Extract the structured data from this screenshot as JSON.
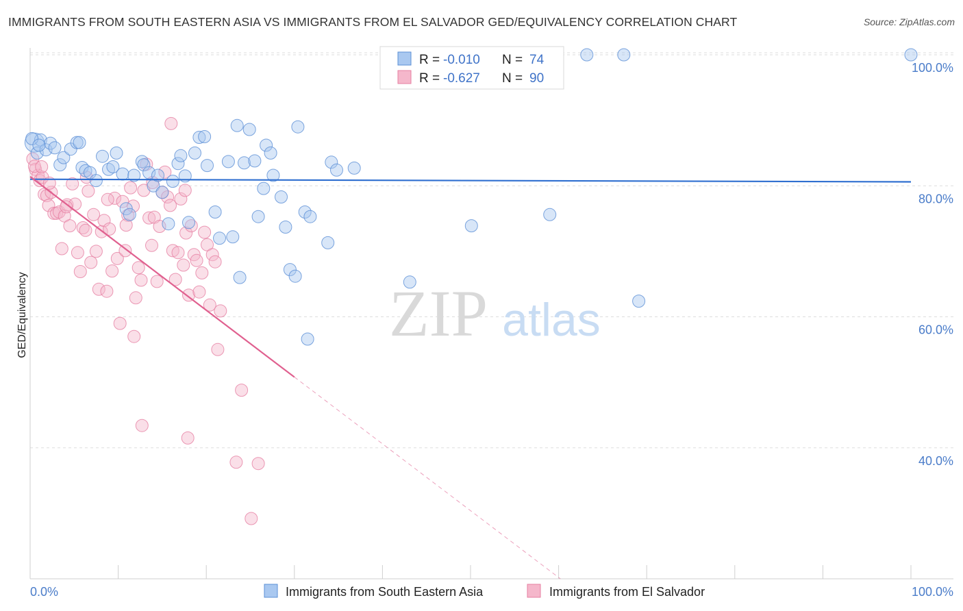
{
  "title": "IMMIGRANTS FROM SOUTH EASTERN ASIA VS IMMIGRANTS FROM EL SALVADOR GED/EQUIVALENCY CORRELATION CHART",
  "source": "Source: ZipAtlas.com",
  "watermark": {
    "zip": "ZIP",
    "atlas": "atlas"
  },
  "colors": {
    "blue_fill": "#a9c8f0",
    "blue_stroke": "#5b8fd6",
    "blue_line": "#2f6fd0",
    "pink_fill": "#f5b7cb",
    "pink_stroke": "#e67fa2",
    "pink_line": "#e0608f",
    "tick_text": "#4a7cc9",
    "grid": "#dddddd"
  },
  "chart_data": {
    "type": "scatter",
    "title": "IMMIGRANTS FROM SOUTH EASTERN ASIA VS IMMIGRANTS FROM EL SALVADOR GED/EQUIVALENCY CORRELATION CHART",
    "xlabel": "",
    "ylabel": "GED/Equivalency",
    "xlim": [
      0,
      100
    ],
    "ylim": [
      20,
      102
    ],
    "x_tick_labels": [
      "0.0%",
      "100.0%"
    ],
    "y_ticks": [
      40,
      60,
      80,
      100
    ],
    "y_tick_labels": [
      "40.0%",
      "60.0%",
      "80.0%",
      "100.0%"
    ],
    "grid": true,
    "legend_position": "top-center",
    "legend": [
      {
        "r_label": "R =",
        "r_value": "-0.010",
        "n_label": "N =",
        "n_value": "74"
      },
      {
        "r_label": "R =",
        "r_value": "-0.627",
        "n_label": "N =",
        "n_value": "90"
      }
    ],
    "series": [
      {
        "name": "Immigrants from South Eastern Asia",
        "color": "#a9c8f0",
        "trend": {
          "x0": 0,
          "y0": 81.0,
          "x1": 100,
          "y1": 80.6,
          "solid_until": 100
        },
        "points": [
          [
            0.5,
            86.6
          ],
          [
            0.8,
            85.0
          ],
          [
            1.2,
            87.0
          ],
          [
            1.8,
            85.5
          ],
          [
            2.3,
            86.5
          ],
          [
            2.8,
            85.8
          ],
          [
            3.4,
            83.2
          ],
          [
            3.8,
            84.3
          ],
          [
            4.6,
            85.6
          ],
          [
            5.3,
            86.6
          ],
          [
            5.6,
            86.6
          ],
          [
            5.9,
            82.8
          ],
          [
            6.3,
            82.3
          ],
          [
            6.8,
            82.0
          ],
          [
            7.5,
            80.8
          ],
          [
            8.2,
            84.5
          ],
          [
            8.9,
            82.5
          ],
          [
            9.4,
            82.9
          ],
          [
            9.8,
            85.0
          ],
          [
            10.5,
            81.8
          ],
          [
            10.9,
            76.5
          ],
          [
            11.3,
            75.6
          ],
          [
            11.8,
            81.6
          ],
          [
            12.7,
            83.7
          ],
          [
            12.9,
            83.2
          ],
          [
            13.5,
            82.0
          ],
          [
            14.0,
            80.0
          ],
          [
            14.5,
            81.6
          ],
          [
            15.0,
            79.0
          ],
          [
            15.7,
            74.2
          ],
          [
            16.2,
            80.7
          ],
          [
            16.8,
            83.4
          ],
          [
            17.1,
            84.6
          ],
          [
            17.6,
            81.5
          ],
          [
            18.0,
            74.4
          ],
          [
            18.7,
            85.0
          ],
          [
            19.2,
            87.4
          ],
          [
            19.8,
            87.5
          ],
          [
            20.1,
            83.1
          ],
          [
            21.0,
            76.0
          ],
          [
            21.5,
            72.0
          ],
          [
            22.5,
            83.7
          ],
          [
            23.0,
            72.2
          ],
          [
            23.5,
            89.2
          ],
          [
            23.8,
            66.0
          ],
          [
            24.3,
            83.5
          ],
          [
            24.9,
            88.6
          ],
          [
            25.5,
            83.8
          ],
          [
            25.9,
            75.3
          ],
          [
            26.5,
            79.6
          ],
          [
            26.8,
            86.2
          ],
          [
            27.3,
            85.0
          ],
          [
            27.6,
            81.6
          ],
          [
            28.5,
            78.3
          ],
          [
            29.0,
            73.7
          ],
          [
            29.5,
            67.2
          ],
          [
            30.1,
            66.2
          ],
          [
            30.4,
            89.0
          ],
          [
            31.2,
            76.0
          ],
          [
            31.8,
            75.3
          ],
          [
            31.5,
            56.6
          ],
          [
            33.8,
            71.3
          ],
          [
            34.2,
            83.6
          ],
          [
            34.8,
            82.4
          ],
          [
            36.8,
            82.7
          ],
          [
            43.1,
            65.3
          ],
          [
            50.1,
            73.9
          ],
          [
            59.0,
            75.6
          ],
          [
            63.2,
            100.0
          ],
          [
            67.4,
            100.0
          ],
          [
            69.1,
            62.4
          ],
          [
            100.0,
            100.0
          ],
          [
            0.2,
            87.2
          ],
          [
            1.0,
            86.2
          ]
        ]
      },
      {
        "name": "Immigrants from El Salvador",
        "color": "#f5b7cb",
        "trend": {
          "x0": 0,
          "y0": 81.4,
          "x1": 60.2,
          "y1": 20.0,
          "solid_until": 30.0
        },
        "points": [
          [
            0.3,
            84.1
          ],
          [
            0.6,
            82.5
          ],
          [
            0.9,
            81.6
          ],
          [
            1.1,
            80.8
          ],
          [
            1.4,
            81.3
          ],
          [
            1.6,
            78.7
          ],
          [
            1.9,
            78.5
          ],
          [
            2.1,
            77.0
          ],
          [
            2.4,
            79.0
          ],
          [
            2.7,
            75.8
          ],
          [
            3.0,
            75.8
          ],
          [
            3.3,
            76.0
          ],
          [
            3.6,
            70.4
          ],
          [
            3.9,
            75.4
          ],
          [
            4.2,
            77.1
          ],
          [
            4.5,
            73.9
          ],
          [
            4.8,
            80.3
          ],
          [
            5.1,
            77.2
          ],
          [
            5.4,
            69.8
          ],
          [
            5.7,
            66.9
          ],
          [
            6.0,
            73.6
          ],
          [
            6.3,
            73.2
          ],
          [
            6.6,
            79.2
          ],
          [
            6.9,
            68.3
          ],
          [
            7.2,
            75.6
          ],
          [
            7.5,
            70.0
          ],
          [
            7.8,
            64.2
          ],
          [
            8.1,
            73.0
          ],
          [
            8.4,
            74.7
          ],
          [
            8.7,
            63.9
          ],
          [
            9.0,
            73.4
          ],
          [
            9.3,
            67.0
          ],
          [
            9.6,
            78.1
          ],
          [
            9.9,
            68.9
          ],
          [
            10.2,
            59.0
          ],
          [
            10.5,
            77.6
          ],
          [
            10.8,
            70.1
          ],
          [
            11.1,
            75.5
          ],
          [
            11.4,
            79.7
          ],
          [
            11.7,
            76.9
          ],
          [
            12.0,
            62.9
          ],
          [
            12.3,
            67.5
          ],
          [
            12.6,
            65.6
          ],
          [
            12.9,
            79.3
          ],
          [
            13.2,
            83.3
          ],
          [
            13.5,
            75.1
          ],
          [
            13.8,
            70.9
          ],
          [
            14.1,
            75.2
          ],
          [
            14.4,
            65.4
          ],
          [
            14.7,
            73.8
          ],
          [
            15.0,
            79.0
          ],
          [
            15.3,
            82.1
          ],
          [
            15.6,
            78.3
          ],
          [
            15.9,
            77.0
          ],
          [
            16.2,
            70.1
          ],
          [
            16.5,
            65.7
          ],
          [
            16.8,
            69.8
          ],
          [
            17.1,
            78.0
          ],
          [
            17.4,
            67.9
          ],
          [
            17.7,
            72.8
          ],
          [
            18.0,
            63.3
          ],
          [
            18.3,
            73.9
          ],
          [
            18.6,
            69.5
          ],
          [
            18.9,
            68.6
          ],
          [
            19.2,
            63.8
          ],
          [
            19.5,
            66.7
          ],
          [
            19.8,
            72.9
          ],
          [
            20.1,
            71.0
          ],
          [
            20.4,
            61.8
          ],
          [
            20.7,
            69.5
          ],
          [
            21.0,
            68.4
          ],
          [
            21.3,
            55.0
          ],
          [
            21.6,
            60.9
          ],
          [
            11.8,
            57.0
          ],
          [
            16.0,
            89.5
          ],
          [
            24.0,
            48.8
          ],
          [
            12.7,
            43.4
          ],
          [
            17.9,
            41.5
          ],
          [
            23.4,
            37.8
          ],
          [
            25.9,
            37.6
          ],
          [
            25.1,
            29.2
          ],
          [
            0.5,
            83.0
          ],
          [
            1.3,
            82.9
          ],
          [
            2.2,
            80.4
          ],
          [
            4.1,
            76.8
          ],
          [
            6.4,
            81.3
          ],
          [
            8.8,
            77.9
          ],
          [
            10.9,
            74.0
          ],
          [
            13.9,
            80.5
          ],
          [
            17.6,
            79.3
          ]
        ]
      }
    ]
  }
}
